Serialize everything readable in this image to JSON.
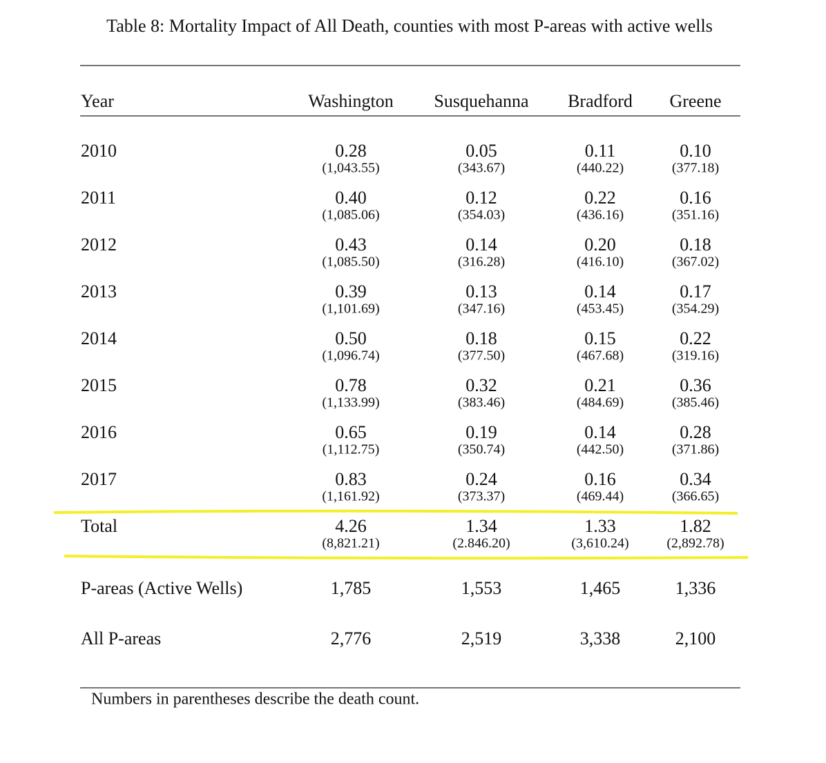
{
  "caption": "Table 8: Mortality Impact of All Death, counties with most P-areas with active wells",
  "table": {
    "columns": [
      "Year",
      "Washington",
      "Susquehanna",
      "Bradford",
      "Greene"
    ],
    "rows": [
      {
        "label": "2010",
        "cells": [
          {
            "value": "0.28",
            "count": "(1,043.55)"
          },
          {
            "value": "0.05",
            "count": "(343.67)"
          },
          {
            "value": "0.11",
            "count": "(440.22)"
          },
          {
            "value": "0.10",
            "count": "(377.18)"
          }
        ]
      },
      {
        "label": "2011",
        "cells": [
          {
            "value": "0.40",
            "count": "(1,085.06)"
          },
          {
            "value": "0.12",
            "count": "(354.03)"
          },
          {
            "value": "0.22",
            "count": "(436.16)"
          },
          {
            "value": "0.16",
            "count": "(351.16)"
          }
        ]
      },
      {
        "label": "2012",
        "cells": [
          {
            "value": "0.43",
            "count": "(1,085.50)"
          },
          {
            "value": "0.14",
            "count": "(316.28)"
          },
          {
            "value": "0.20",
            "count": "(416.10)"
          },
          {
            "value": "0.18",
            "count": "(367.02)"
          }
        ]
      },
      {
        "label": "2013",
        "cells": [
          {
            "value": "0.39",
            "count": "(1,101.69)"
          },
          {
            "value": "0.13",
            "count": "(347.16)"
          },
          {
            "value": "0.14",
            "count": "(453.45)"
          },
          {
            "value": "0.17",
            "count": "(354.29)"
          }
        ]
      },
      {
        "label": "2014",
        "cells": [
          {
            "value": "0.50",
            "count": "(1,096.74)"
          },
          {
            "value": "0.18",
            "count": "(377.50)"
          },
          {
            "value": "0.15",
            "count": "(467.68)"
          },
          {
            "value": "0.22",
            "count": "(319.16)"
          }
        ]
      },
      {
        "label": "2015",
        "cells": [
          {
            "value": "0.78",
            "count": "(1,133.99)"
          },
          {
            "value": "0.32",
            "count": "(383.46)"
          },
          {
            "value": "0.21",
            "count": "(484.69)"
          },
          {
            "value": "0.36",
            "count": "(385.46)"
          }
        ]
      },
      {
        "label": "2016",
        "cells": [
          {
            "value": "0.65",
            "count": "(1,112.75)"
          },
          {
            "value": "0.19",
            "count": "(350.74)"
          },
          {
            "value": "0.14",
            "count": "(442.50)"
          },
          {
            "value": "0.28",
            "count": "(371.86)"
          }
        ]
      },
      {
        "label": "2017",
        "cells": [
          {
            "value": "0.83",
            "count": "(1,161.92)"
          },
          {
            "value": "0.24",
            "count": "(373.37)"
          },
          {
            "value": "0.16",
            "count": "(469.44)"
          },
          {
            "value": "0.34",
            "count": "(366.65)"
          }
        ]
      },
      {
        "label": "Total",
        "cells": [
          {
            "value": "4.26",
            "count": "(8,821.21)"
          },
          {
            "value": "1.34",
            "count": "(2.846.20)"
          },
          {
            "value": "1.33",
            "count": "(3,610.24)"
          },
          {
            "value": "1.82",
            "count": "(2,892.78)"
          }
        ]
      }
    ],
    "summary_rows": [
      {
        "label": "P-areas (Active Wells)",
        "cells": [
          "1,785",
          "1,553",
          "1,465",
          "1,336"
        ]
      },
      {
        "label": "All P-areas",
        "cells": [
          "2,776",
          "2,519",
          "3,338",
          "2,100"
        ]
      }
    ]
  },
  "footnote": "Numbers in parentheses describe the death count."
}
